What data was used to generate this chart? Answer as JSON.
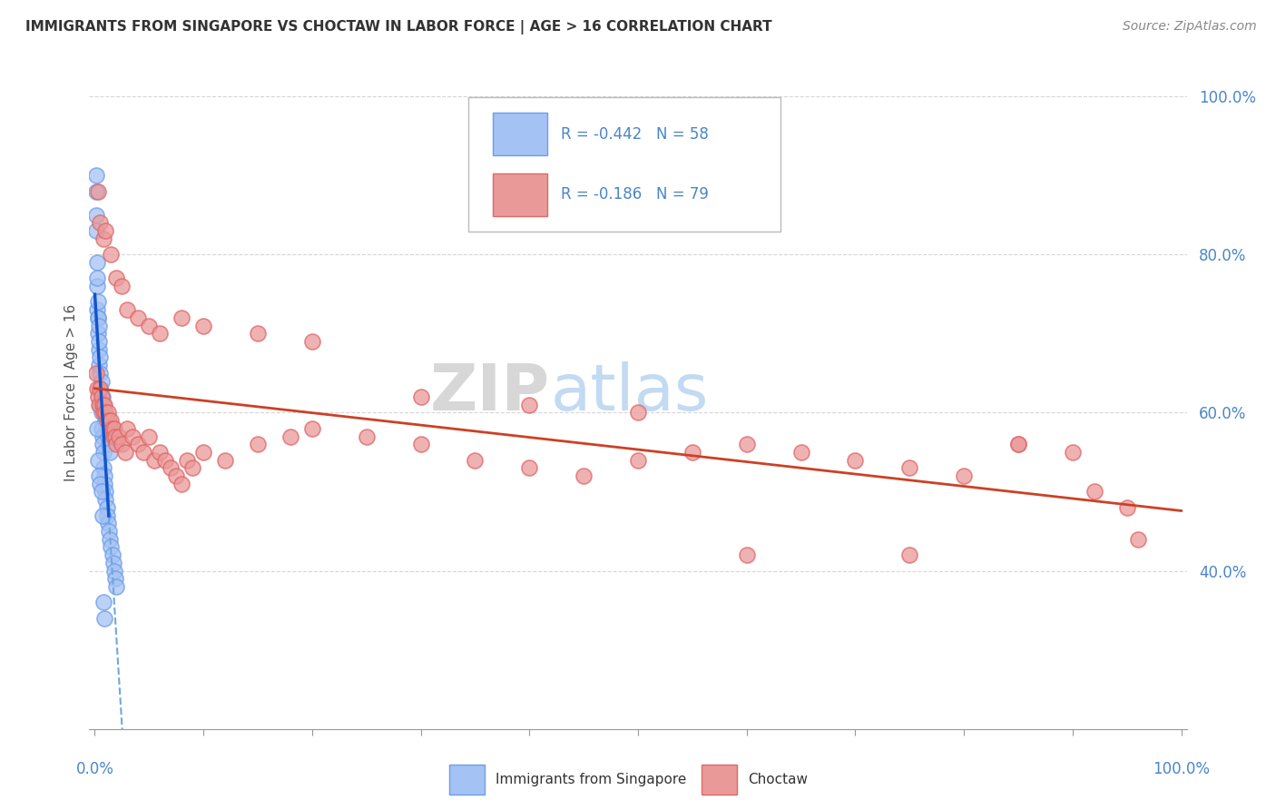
{
  "title": "IMMIGRANTS FROM SINGAPORE VS CHOCTAW IN LABOR FORCE | AGE > 16 CORRELATION CHART",
  "source": "Source: ZipAtlas.com",
  "ylabel": "In Labor Force | Age > 16",
  "legend_r1": "-0.442",
  "legend_n1": "58",
  "legend_r2": "-0.186",
  "legend_n2": "79",
  "color_singapore_fill": "#a4c2f4",
  "color_singapore_edge": "#6d9eeb",
  "color_choctaw_fill": "#ea9999",
  "color_choctaw_edge": "#e06666",
  "color_trend_singapore_solid": "#1155cc",
  "color_trend_singapore_dash": "#6fa8dc",
  "color_trend_choctaw": "#cc4125",
  "bg_color": "#ffffff",
  "grid_color": "#cccccc",
  "title_color": "#333333",
  "axis_label_color": "#4a86c8",
  "watermark_zip_color": "#c9c9c9",
  "watermark_atlas_color": "#b8d4f0",
  "sg_x": [
    0.001,
    0.001,
    0.002,
    0.002,
    0.003,
    0.003,
    0.004,
    0.004,
    0.005,
    0.005,
    0.005,
    0.006,
    0.006,
    0.007,
    0.007,
    0.008,
    0.008,
    0.009,
    0.009,
    0.01,
    0.01,
    0.011,
    0.011,
    0.012,
    0.013,
    0.014,
    0.015,
    0.016,
    0.017,
    0.018,
    0.019,
    0.02,
    0.001,
    0.001,
    0.002,
    0.002,
    0.003,
    0.003,
    0.004,
    0.004,
    0.005,
    0.006,
    0.007,
    0.008,
    0.009,
    0.01,
    0.011,
    0.012,
    0.013,
    0.014,
    0.002,
    0.003,
    0.004,
    0.005,
    0.006,
    0.007,
    0.008,
    0.009
  ],
  "sg_y": [
    0.9,
    0.88,
    0.76,
    0.73,
    0.72,
    0.7,
    0.68,
    0.66,
    0.65,
    0.63,
    0.61,
    0.6,
    0.58,
    0.57,
    0.56,
    0.55,
    0.53,
    0.52,
    0.51,
    0.5,
    0.49,
    0.48,
    0.47,
    0.46,
    0.45,
    0.44,
    0.43,
    0.42,
    0.41,
    0.4,
    0.39,
    0.38,
    0.85,
    0.83,
    0.79,
    0.77,
    0.74,
    0.72,
    0.71,
    0.69,
    0.67,
    0.64,
    0.62,
    0.61,
    0.6,
    0.59,
    0.58,
    0.57,
    0.56,
    0.55,
    0.58,
    0.54,
    0.52,
    0.51,
    0.5,
    0.47,
    0.36,
    0.34
  ],
  "ch_x": [
    0.001,
    0.002,
    0.003,
    0.004,
    0.005,
    0.006,
    0.007,
    0.008,
    0.009,
    0.01,
    0.011,
    0.012,
    0.013,
    0.014,
    0.015,
    0.016,
    0.017,
    0.018,
    0.019,
    0.02,
    0.022,
    0.025,
    0.028,
    0.03,
    0.035,
    0.04,
    0.045,
    0.05,
    0.055,
    0.06,
    0.065,
    0.07,
    0.075,
    0.08,
    0.085,
    0.09,
    0.1,
    0.12,
    0.15,
    0.18,
    0.2,
    0.25,
    0.3,
    0.35,
    0.4,
    0.45,
    0.5,
    0.55,
    0.6,
    0.65,
    0.7,
    0.75,
    0.8,
    0.85,
    0.9,
    0.95,
    0.003,
    0.005,
    0.008,
    0.01,
    0.015,
    0.02,
    0.025,
    0.03,
    0.04,
    0.05,
    0.06,
    0.08,
    0.1,
    0.15,
    0.2,
    0.3,
    0.4,
    0.5,
    0.6,
    0.75,
    0.85,
    0.92,
    0.96
  ],
  "ch_y": [
    0.65,
    0.63,
    0.62,
    0.61,
    0.63,
    0.62,
    0.61,
    0.6,
    0.61,
    0.6,
    0.59,
    0.6,
    0.59,
    0.58,
    0.59,
    0.58,
    0.57,
    0.58,
    0.57,
    0.56,
    0.57,
    0.56,
    0.55,
    0.58,
    0.57,
    0.56,
    0.55,
    0.57,
    0.54,
    0.55,
    0.54,
    0.53,
    0.52,
    0.51,
    0.54,
    0.53,
    0.55,
    0.54,
    0.56,
    0.57,
    0.58,
    0.57,
    0.56,
    0.54,
    0.53,
    0.52,
    0.54,
    0.55,
    0.56,
    0.55,
    0.54,
    0.53,
    0.52,
    0.56,
    0.55,
    0.48,
    0.88,
    0.84,
    0.82,
    0.83,
    0.8,
    0.77,
    0.76,
    0.73,
    0.72,
    0.71,
    0.7,
    0.72,
    0.71,
    0.7,
    0.69,
    0.62,
    0.61,
    0.6,
    0.42,
    0.42,
    0.56,
    0.5,
    0.44
  ],
  "xlim": [
    0.0,
    1.0
  ],
  "ylim": [
    0.2,
    1.05
  ],
  "ytick_vals": [
    0.4,
    0.6,
    0.8,
    1.0
  ],
  "ytick_labels": [
    "40.0%",
    "60.0%",
    "80.0%",
    "100.0%"
  ]
}
